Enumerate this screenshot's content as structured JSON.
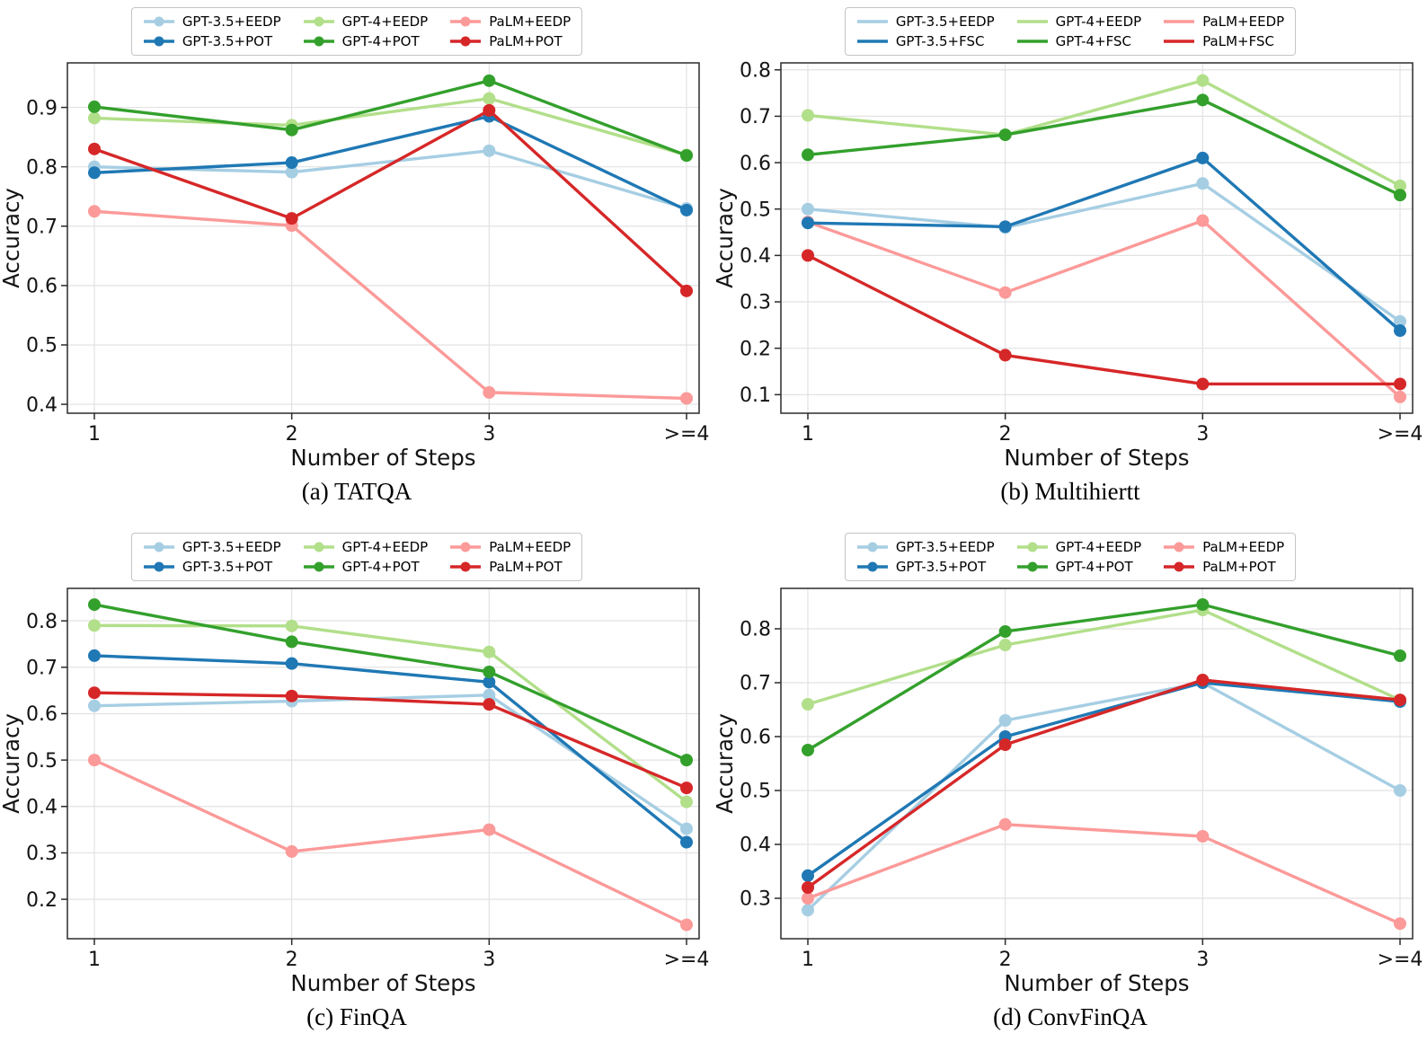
{
  "figure": {
    "xlabel": "Number of Steps",
    "ylabel": "Accuracy",
    "categories": [
      "1",
      "2",
      "3",
      ">=4"
    ]
  },
  "colors": {
    "gpt35_eedp": "#a6cee3",
    "gpt35_dark": "#1f78b4",
    "gpt4_eedp": "#b2df8a",
    "gpt4_dark": "#33a02c",
    "palm_eedp": "#fb9a99",
    "palm_dark": "#d62728",
    "grid": "#e2e2e2",
    "spine": "#2b2b2b",
    "tick_text": "#141414"
  },
  "chart_data": [
    {
      "type": "line",
      "caption": "(a) TATQA",
      "xlabel": "Number of Steps",
      "ylabel": "Accuracy",
      "categories": [
        "1",
        "2",
        "3",
        ">=4"
      ],
      "yticks": [
        0.4,
        0.5,
        0.6,
        0.7,
        0.8,
        0.9
      ],
      "ylim": [
        0.385,
        0.975
      ],
      "legend_dot": true,
      "legend_position": "top-center",
      "grid": true,
      "series": [
        {
          "name": "GPT-3.5+EEDP",
          "color": "#a6cee3",
          "values": [
            0.8,
            0.791,
            0.827,
            0.73
          ]
        },
        {
          "name": "GPT-3.5+POT",
          "color": "#1f78b4",
          "values": [
            0.79,
            0.807,
            0.885,
            0.727
          ]
        },
        {
          "name": "GPT-4+EEDP",
          "color": "#b2df8a",
          "values": [
            0.882,
            0.87,
            0.915,
            0.82
          ]
        },
        {
          "name": "GPT-4+POT",
          "color": "#33a02c",
          "values": [
            0.901,
            0.862,
            0.945,
            0.819
          ]
        },
        {
          "name": "PaLM+EEDP",
          "color": "#fb9a99",
          "values": [
            0.725,
            0.701,
            0.42,
            0.41
          ]
        },
        {
          "name": "PaLM+POT",
          "color": "#d62728",
          "values": [
            0.83,
            0.713,
            0.895,
            0.591
          ]
        }
      ]
    },
    {
      "type": "line",
      "caption": "(b) Multihiertt",
      "xlabel": "Number of Steps",
      "ylabel": "Accuracy",
      "categories": [
        "1",
        "2",
        "3",
        ">=4"
      ],
      "yticks": [
        0.1,
        0.2,
        0.3,
        0.4,
        0.5,
        0.6,
        0.7,
        0.8
      ],
      "ylim": [
        0.06,
        0.815
      ],
      "legend_dot": false,
      "legend_position": "top-center",
      "grid": true,
      "series": [
        {
          "name": "GPT-3.5+EEDP",
          "color": "#a6cee3",
          "values": [
            0.5,
            0.46,
            0.555,
            0.258
          ]
        },
        {
          "name": "GPT-3.5+FSC",
          "color": "#1f78b4",
          "values": [
            0.47,
            0.462,
            0.61,
            0.238
          ]
        },
        {
          "name": "GPT-4+EEDP",
          "color": "#b2df8a",
          "values": [
            0.702,
            0.66,
            0.777,
            0.55
          ]
        },
        {
          "name": "GPT-4+FSC",
          "color": "#33a02c",
          "values": [
            0.617,
            0.66,
            0.735,
            0.53
          ]
        },
        {
          "name": "PaLM+EEDP",
          "color": "#fb9a99",
          "values": [
            0.472,
            0.32,
            0.475,
            0.095
          ]
        },
        {
          "name": "PaLM+FSC",
          "color": "#d62728",
          "values": [
            0.4,
            0.185,
            0.123,
            0.123
          ]
        }
      ]
    },
    {
      "type": "line",
      "caption": "(c) FinQA",
      "xlabel": "Number of Steps",
      "ylabel": "Accuracy",
      "categories": [
        "1",
        "2",
        "3",
        ">=4"
      ],
      "yticks": [
        0.2,
        0.3,
        0.4,
        0.5,
        0.6,
        0.7,
        0.8
      ],
      "ylim": [
        0.115,
        0.87
      ],
      "legend_dot": true,
      "legend_position": "top-center",
      "grid": true,
      "series": [
        {
          "name": "GPT-3.5+EEDP",
          "color": "#a6cee3",
          "values": [
            0.617,
            0.627,
            0.64,
            0.352
          ]
        },
        {
          "name": "GPT-3.5+POT",
          "color": "#1f78b4",
          "values": [
            0.725,
            0.708,
            0.668,
            0.323
          ]
        },
        {
          "name": "GPT-4+EEDP",
          "color": "#b2df8a",
          "values": [
            0.79,
            0.789,
            0.733,
            0.41
          ]
        },
        {
          "name": "GPT-4+POT",
          "color": "#33a02c",
          "values": [
            0.835,
            0.755,
            0.69,
            0.5
          ]
        },
        {
          "name": "PaLM+EEDP",
          "color": "#fb9a99",
          "values": [
            0.5,
            0.303,
            0.35,
            0.145
          ]
        },
        {
          "name": "PaLM+POT",
          "color": "#d62728",
          "values": [
            0.645,
            0.638,
            0.62,
            0.44
          ]
        }
      ]
    },
    {
      "type": "line",
      "caption": "(d) ConvFinQA",
      "xlabel": "Number of Steps",
      "ylabel": "Accuracy",
      "categories": [
        "1",
        "2",
        "3",
        ">=4"
      ],
      "yticks": [
        0.3,
        0.4,
        0.5,
        0.6,
        0.7,
        0.8
      ],
      "ylim": [
        0.225,
        0.875
      ],
      "legend_dot": true,
      "legend_position": "top-center",
      "grid": true,
      "series": [
        {
          "name": "GPT-3.5+EEDP",
          "color": "#a6cee3",
          "values": [
            0.278,
            0.63,
            0.7,
            0.5
          ]
        },
        {
          "name": "GPT-3.5+POT",
          "color": "#1f78b4",
          "values": [
            0.342,
            0.6,
            0.7,
            0.665
          ]
        },
        {
          "name": "GPT-4+EEDP",
          "color": "#b2df8a",
          "values": [
            0.66,
            0.77,
            0.835,
            0.668
          ]
        },
        {
          "name": "GPT-4+POT",
          "color": "#33a02c",
          "values": [
            0.575,
            0.795,
            0.845,
            0.75
          ]
        },
        {
          "name": "PaLM+EEDP",
          "color": "#fb9a99",
          "values": [
            0.3,
            0.437,
            0.415,
            0.253
          ]
        },
        {
          "name": "PaLM+POT",
          "color": "#d62728",
          "values": [
            0.32,
            0.585,
            0.705,
            0.668
          ]
        }
      ]
    }
  ]
}
